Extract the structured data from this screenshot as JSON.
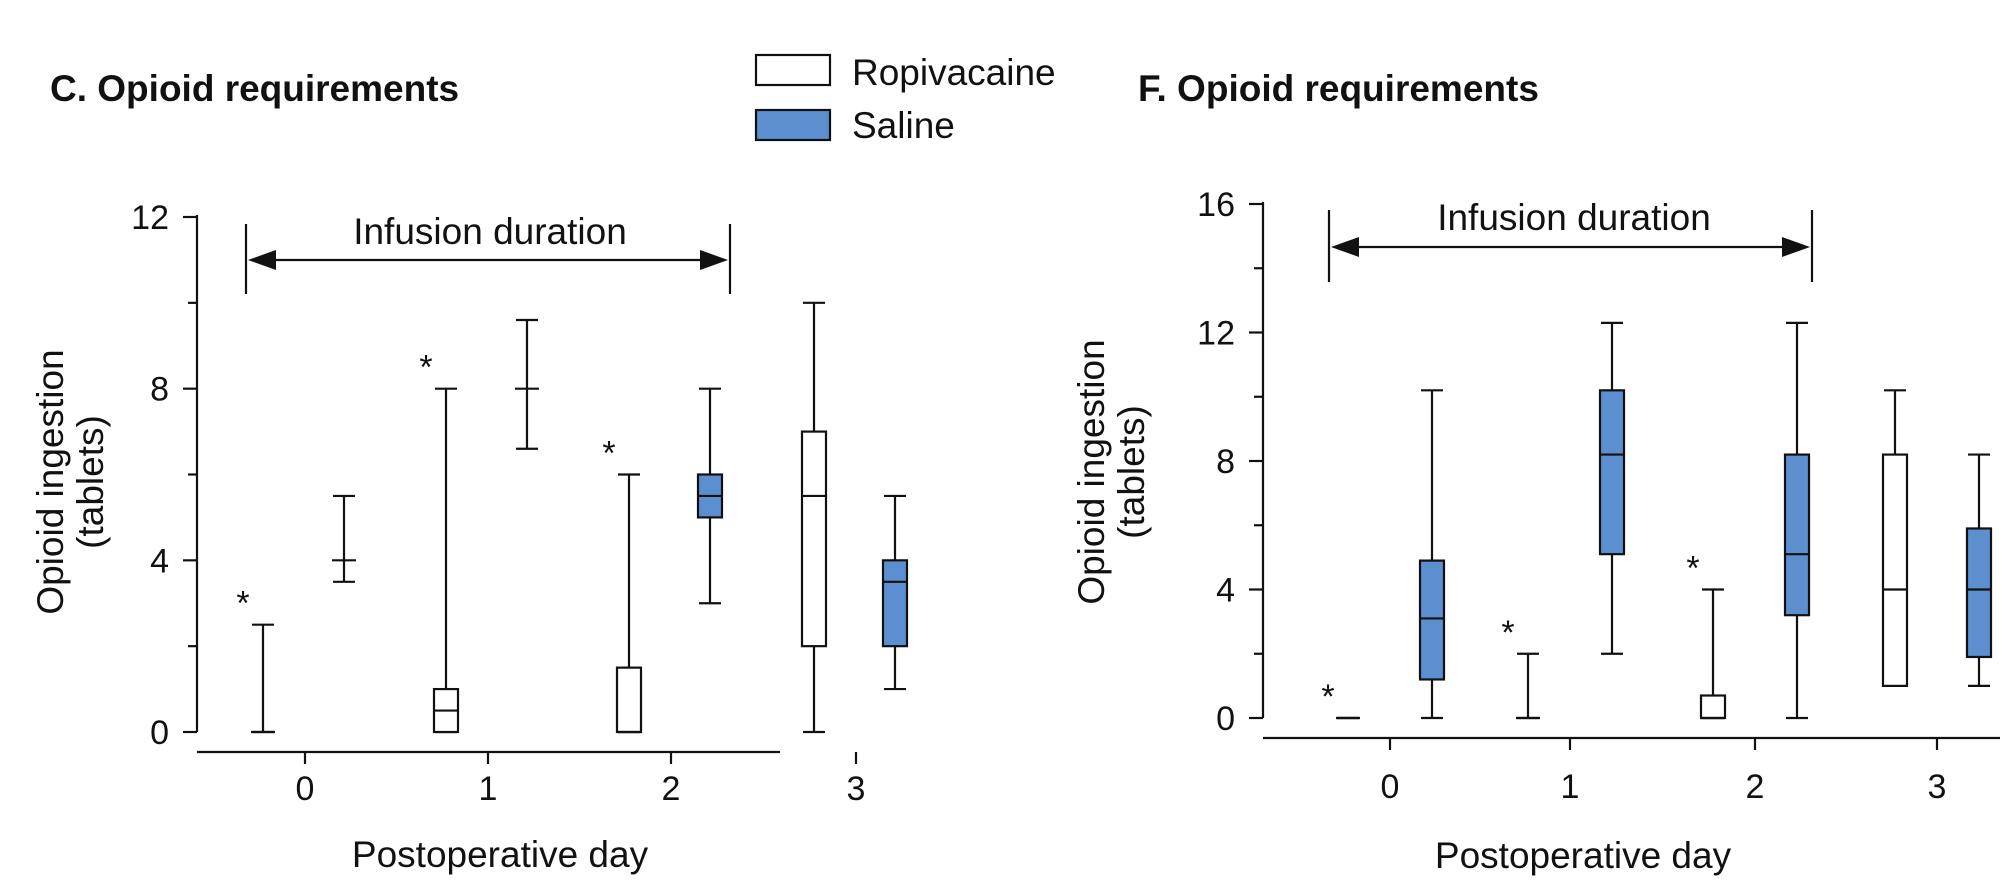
{
  "legend": [
    {
      "label": "Ropivacaine",
      "color": "#ffffff"
    },
    {
      "label": "Saline",
      "color": "#5b8fd0"
    }
  ],
  "chart_data": [
    {
      "type": "boxplot",
      "title": "C. Opioid requirements",
      "xlabel": "Postoperative day",
      "ylabel_line1": "Opioid ingestion",
      "ylabel_line2": "(tablets)",
      "ylim": [
        0,
        12
      ],
      "yticks": [
        "0",
        "4",
        "8",
        "12"
      ],
      "categories": [
        "0",
        "1",
        "2",
        "3"
      ],
      "annotation": "Infusion duration",
      "significance_marker": "*",
      "series": [
        {
          "name": "Ropivacaine",
          "boxes": [
            {
              "day": "0",
              "min": 0,
              "q1": 0,
              "median": 0,
              "q3": 0,
              "max": 2.5,
              "significant": true
            },
            {
              "day": "1",
              "min": 0,
              "q1": 0,
              "median": 0.5,
              "q3": 1,
              "max": 8,
              "significant": true
            },
            {
              "day": "2",
              "min": 0,
              "q1": 0,
              "median": 0,
              "q3": 1.5,
              "max": 6,
              "significant": true
            },
            {
              "day": "3",
              "min": 0,
              "q1": 2,
              "median": 5.5,
              "q3": 7,
              "max": 10,
              "significant": false
            }
          ]
        },
        {
          "name": "Saline",
          "boxes": [
            {
              "day": "0",
              "min": 3.5,
              "q1": 4,
              "median": 4,
              "q3": 4,
              "max": 5.5
            },
            {
              "day": "1",
              "min": 6.6,
              "q1": 8,
              "median": 8,
              "q3": 8,
              "max": 9.6
            },
            {
              "day": "2",
              "min": 3,
              "q1": 5,
              "median": 5.5,
              "q3": 6,
              "max": 8
            },
            {
              "day": "3",
              "min": 1,
              "q1": 2,
              "median": 3.5,
              "q3": 4,
              "max": 5.5
            }
          ]
        }
      ]
    },
    {
      "type": "boxplot",
      "title": "F. Opioid requirements",
      "xlabel": "Postoperative day",
      "ylabel_line1": "Opioid ingestion",
      "ylabel_line2": "(tablets)",
      "ylim": [
        0,
        16
      ],
      "yticks": [
        "0",
        "4",
        "8",
        "12",
        "16"
      ],
      "categories": [
        "0",
        "1",
        "2",
        "3"
      ],
      "annotation": "Infusion duration",
      "significance_marker": "*",
      "series": [
        {
          "name": "Ropivacaine",
          "boxes": [
            {
              "day": "0",
              "min": 0,
              "q1": 0,
              "median": 0,
              "q3": 0,
              "max": 0,
              "significant": true
            },
            {
              "day": "1",
              "min": 0,
              "q1": 0,
              "median": 0,
              "q3": 0,
              "max": 2,
              "significant": true
            },
            {
              "day": "2",
              "min": 0,
              "q1": 0,
              "median": 0,
              "q3": 0.7,
              "max": 4,
              "significant": true
            },
            {
              "day": "3",
              "min": 1,
              "q1": 1,
              "median": 4,
              "q3": 8.2,
              "max": 10.2,
              "significant": false
            }
          ]
        },
        {
          "name": "Saline",
          "boxes": [
            {
              "day": "0",
              "min": 0,
              "q1": 1.2,
              "median": 3.1,
              "q3": 4.9,
              "max": 10.2
            },
            {
              "day": "1",
              "min": 2,
              "q1": 5.1,
              "median": 8.2,
              "q3": 10.2,
              "max": 12.3
            },
            {
              "day": "2",
              "min": 0,
              "q1": 3.2,
              "median": 5.1,
              "q3": 8.2,
              "max": 12.3
            },
            {
              "day": "3",
              "min": 1,
              "q1": 1.9,
              "median": 4,
              "q3": 5.9,
              "max": 8.2
            }
          ]
        }
      ]
    }
  ]
}
